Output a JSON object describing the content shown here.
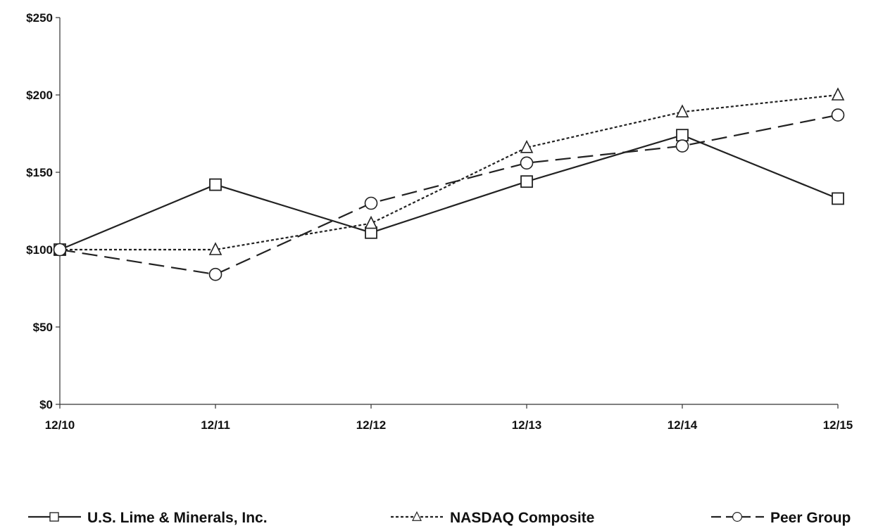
{
  "chart_data": {
    "type": "line",
    "categories": [
      "12/10",
      "12/11",
      "12/12",
      "12/13",
      "12/14",
      "12/15"
    ],
    "y_tick_labels": [
      "$0",
      "$50",
      "$100",
      "$150",
      "$200",
      "$250"
    ],
    "y_ticks": [
      0,
      50,
      100,
      150,
      200,
      250
    ],
    "ylim": [
      0,
      250
    ],
    "grid": false,
    "legend_placement": "bottom",
    "series": [
      {
        "name": "U.S. Lime & Minerals, Inc.",
        "values": [
          100,
          142,
          111,
          144,
          174,
          133
        ],
        "line_style": "solid",
        "marker": "square",
        "color": "#222222"
      },
      {
        "name": "NASDAQ Composite",
        "values": [
          100,
          100,
          117,
          166,
          189,
          200
        ],
        "line_style": "dotted",
        "marker": "triangle",
        "color": "#222222"
      },
      {
        "name": "Peer Group",
        "values": [
          100,
          84,
          130,
          156,
          167,
          187
        ],
        "line_style": "dashed",
        "marker": "circle",
        "color": "#222222"
      }
    ]
  }
}
